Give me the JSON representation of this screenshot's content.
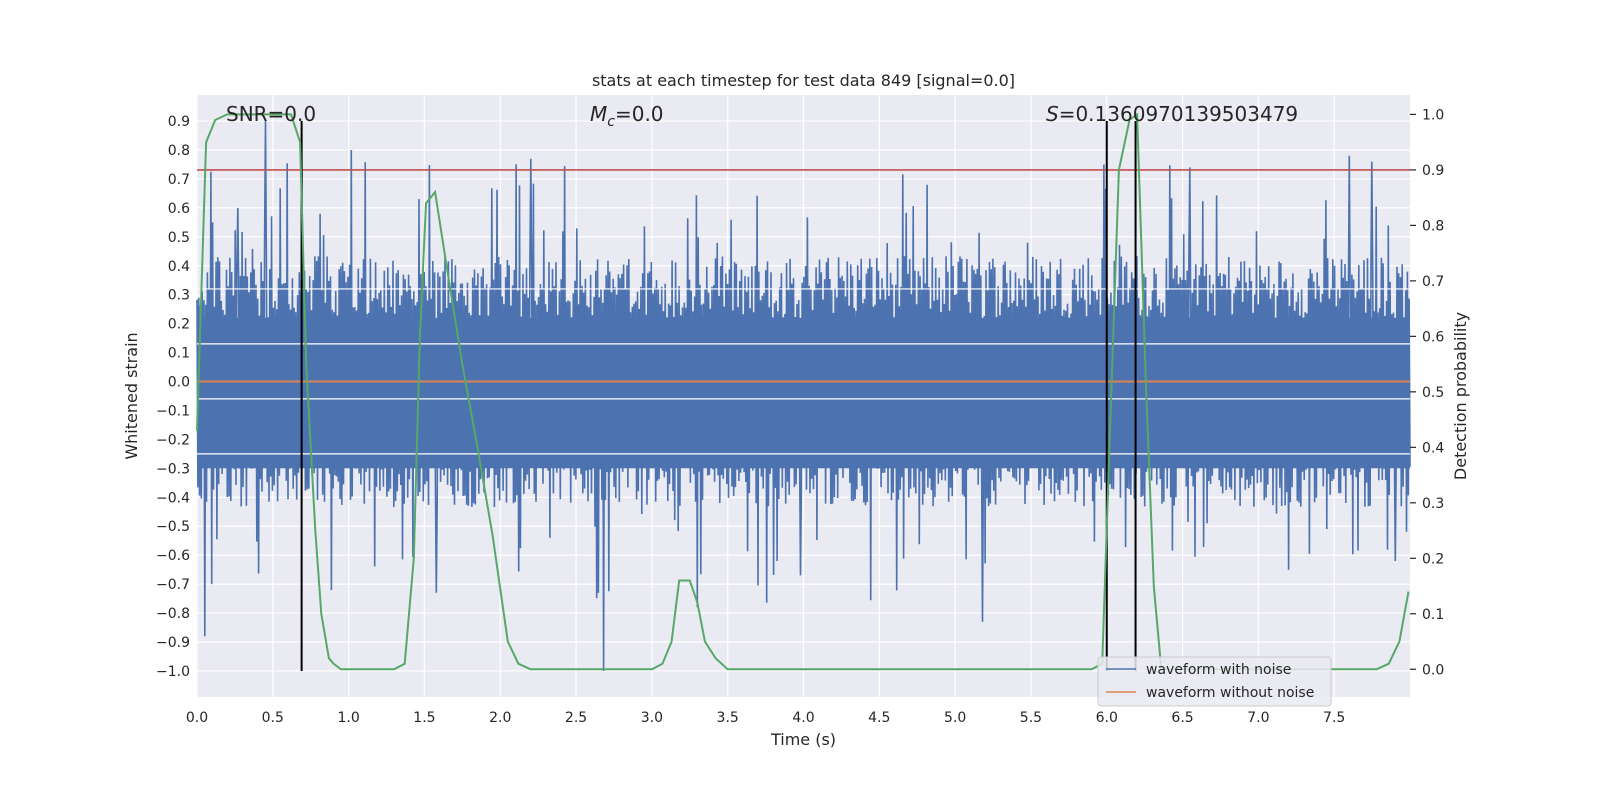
{
  "chart_data": {
    "type": "line",
    "title": "stats at each timestep for test data 849 [signal=0.0]",
    "xlabel": "Time (s)",
    "ylabel": "Whitened strain",
    "y2label": "Detection probability",
    "xlim": [
      0.0,
      8.0
    ],
    "ylim": [
      -1.09,
      0.99
    ],
    "y2lim": [
      -0.05,
      1.035
    ],
    "xticks": [
      "0.0",
      "0.5",
      "1.0",
      "1.5",
      "2.0",
      "2.5",
      "3.0",
      "3.5",
      "4.0",
      "4.5",
      "5.0",
      "5.5",
      "6.0",
      "6.5",
      "7.0",
      "7.5"
    ],
    "yticks": [
      "0.9",
      "0.8",
      "0.7",
      "0.6",
      "0.5",
      "0.4",
      "0.3",
      "0.2",
      "0.1",
      "0.0",
      "-0.1",
      "-0.2",
      "-0.3",
      "-0.4",
      "-0.5",
      "-0.6",
      "-0.7",
      "-0.8",
      "-0.9",
      "-1.0"
    ],
    "y2ticks": [
      "1.0",
      "0.9",
      "0.8",
      "0.7",
      "0.6",
      "0.5",
      "0.4",
      "0.3",
      "0.2",
      "0.1",
      "0.0"
    ],
    "annotations": {
      "snr": "SNR=0.0",
      "mc_symbol": "M",
      "mc_sub": "c",
      "mc_value": "=0.0",
      "s_symbol": "S",
      "s_value": "=0.1360970139503479"
    },
    "threshold": {
      "y2": 0.9,
      "color": "#c44e52"
    },
    "vertical_markers_x": [
      0.69,
      6.0,
      6.19
    ],
    "series": [
      {
        "name": "waveform with noise",
        "color": "#4c72b0",
        "axis": "left",
        "description": "dense whitened noise trace, roughly uniform amplitude between -0.45 and 0.45 with spikes up to 0.9 and down to -1.0",
        "spike_times": [
          0.05,
          0.1,
          0.27,
          0.45,
          0.69,
          1.02,
          1.58,
          2.2,
          2.68,
          3.3,
          3.98,
          5.18,
          5.98,
          6.55,
          7.2,
          7.6,
          7.75,
          7.9
        ],
        "spike_values": [
          -0.88,
          -0.7,
          0.6,
          0.9,
          0.72,
          0.8,
          -0.73,
          0.77,
          -1.0,
          -0.78,
          -0.67,
          -0.83,
          0.75,
          0.74,
          -0.65,
          0.78,
          0.76,
          -0.62
        ]
      },
      {
        "name": "waveform without noise",
        "color": "#dd8452",
        "axis": "left",
        "x": [
          0.0,
          8.0
        ],
        "values": [
          0.0,
          0.0
        ]
      },
      {
        "name": "detection probability",
        "color": "#55a868",
        "axis": "right",
        "x": [
          0.0,
          0.06,
          0.12,
          0.2,
          0.3,
          0.4,
          0.5,
          0.62,
          0.68,
          0.72,
          0.78,
          0.82,
          0.87,
          0.9,
          0.95,
          1.05,
          1.15,
          1.25,
          1.3,
          1.37,
          1.43,
          1.47,
          1.51,
          1.57,
          1.65,
          1.75,
          1.85,
          1.95,
          2.05,
          2.12,
          2.2,
          2.5,
          2.8,
          3.0,
          3.07,
          3.13,
          3.18,
          3.25,
          3.3,
          3.35,
          3.42,
          3.5,
          3.6,
          4.0,
          4.5,
          5.0,
          5.5,
          5.9,
          5.97,
          6.03,
          6.08,
          6.15,
          6.2,
          6.26,
          6.31,
          6.36,
          6.45,
          6.6,
          7.0,
          7.5,
          7.78,
          7.86,
          7.93,
          7.99
        ],
        "values": [
          0.43,
          0.95,
          0.99,
          1.0,
          1.0,
          1.0,
          1.0,
          1.0,
          0.95,
          0.55,
          0.25,
          0.1,
          0.02,
          0.01,
          0.0,
          0.0,
          0.0,
          0.0,
          0.0,
          0.01,
          0.2,
          0.6,
          0.84,
          0.86,
          0.72,
          0.55,
          0.4,
          0.24,
          0.05,
          0.01,
          0.0,
          0.0,
          0.0,
          0.0,
          0.01,
          0.05,
          0.16,
          0.16,
          0.12,
          0.05,
          0.02,
          0.0,
          0.0,
          0.0,
          0.0,
          0.0,
          0.0,
          0.0,
          0.01,
          0.5,
          0.9,
          0.99,
          1.0,
          0.5,
          0.15,
          0.0,
          0.0,
          0.0,
          0.0,
          0.0,
          0.0,
          0.01,
          0.05,
          0.14
        ]
      }
    ],
    "legend": {
      "placement": "lower-right",
      "entries": [
        "waveform with noise",
        "waveform without noise"
      ]
    }
  },
  "colors": {
    "plot_background": "#eaeaf2",
    "grid": "#ffffff",
    "marker": "#000000"
  }
}
